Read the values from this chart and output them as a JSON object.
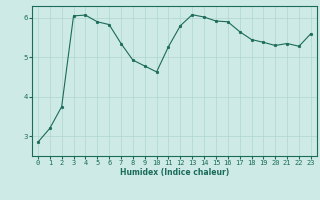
{
  "x": [
    0,
    1,
    2,
    3,
    4,
    5,
    6,
    7,
    8,
    9,
    10,
    11,
    12,
    13,
    14,
    15,
    16,
    17,
    18,
    19,
    20,
    21,
    22,
    23
  ],
  "y": [
    2.85,
    3.2,
    3.75,
    6.05,
    6.07,
    5.9,
    5.83,
    5.35,
    4.93,
    4.78,
    4.63,
    5.27,
    5.8,
    6.08,
    6.02,
    5.92,
    5.9,
    5.65,
    5.45,
    5.38,
    5.3,
    5.35,
    5.28,
    5.6
  ],
  "line_color": "#1a6b5a",
  "marker": "o",
  "marker_size": 1.8,
  "bg_color": "#ceeae6",
  "grid_color": "#b0d5d0",
  "xlabel": "Humidex (Indice chaleur)",
  "xlim": [
    -0.5,
    23.5
  ],
  "ylim": [
    2.5,
    6.3
  ],
  "yticks": [
    3,
    4,
    5,
    6
  ],
  "xticks": [
    0,
    1,
    2,
    3,
    4,
    5,
    6,
    7,
    8,
    9,
    10,
    11,
    12,
    13,
    14,
    15,
    16,
    17,
    18,
    19,
    20,
    21,
    22,
    23
  ],
  "xlabel_fontsize": 5.5,
  "tick_fontsize": 5.0,
  "spine_color": "#1a6b5a"
}
